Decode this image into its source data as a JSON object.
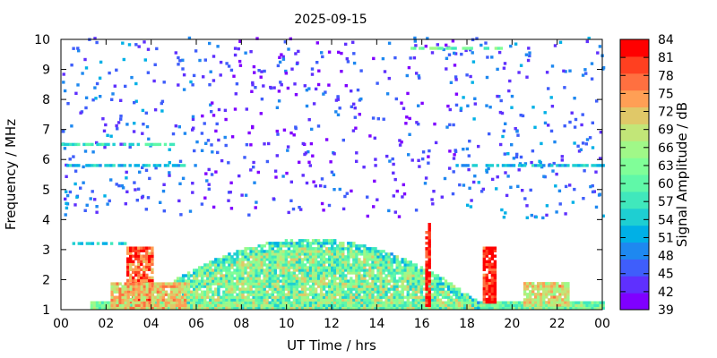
{
  "chart_data": {
    "type": "heatmap",
    "title": "2025-09-15",
    "xlabel": "UT Time / hrs",
    "ylabel": "Frequency / MHz",
    "colorbar_label": "Signal Amplitude / dB",
    "xlim": [
      0,
      24
    ],
    "ylim": [
      1,
      10
    ],
    "x_ticks": [
      "00",
      "02",
      "04",
      "06",
      "08",
      "10",
      "12",
      "14",
      "16",
      "18",
      "20",
      "22",
      "00"
    ],
    "y_ticks": [
      "1",
      "2",
      "3",
      "4",
      "5",
      "6",
      "7",
      "8",
      "9",
      "10"
    ],
    "colorbar_ticks": [
      "39",
      "42",
      "45",
      "48",
      "51",
      "54",
      "57",
      "60",
      "63",
      "66",
      "69",
      "72",
      "75",
      "78",
      "81",
      "84"
    ],
    "colorbar_range": [
      39,
      84
    ],
    "colormap": [
      "#7f00ff",
      "#5f30fe",
      "#3f5efb",
      "#1e88f0",
      "#00b0e6",
      "#1ecfd2",
      "#40e8bc",
      "#60f8a8",
      "#80fe98",
      "#a0f888",
      "#c2e678",
      "#e0c868",
      "#ff9f55",
      "#ff7040",
      "#ff4020",
      "#ff0000"
    ],
    "features": [
      {
        "type": "band",
        "t_start": 1.3,
        "t_end": 24,
        "f_start": 1.0,
        "f_end": 1.25,
        "amplitude": 62
      },
      {
        "type": "dome",
        "t_start": 5.0,
        "t_end": 18.8,
        "f_start": 1.0,
        "f_peak": 3.3,
        "t_peak": 11.0,
        "amplitude": 63
      },
      {
        "type": "burst",
        "t_start": 2.9,
        "t_end": 4.0,
        "f_start": 1.2,
        "f_end": 3.0,
        "amplitude": 78
      },
      {
        "type": "burst",
        "t_start": 2.2,
        "t_end": 5.5,
        "f_start": 1.0,
        "f_end": 1.9,
        "amplitude": 72
      },
      {
        "type": "burst",
        "t_start": 16.15,
        "t_end": 16.35,
        "f_start": 1.0,
        "f_end": 3.8,
        "amplitude": 82
      },
      {
        "type": "burst",
        "t_start": 18.7,
        "t_end": 19.2,
        "f_start": 1.2,
        "f_end": 3.0,
        "amplitude": 81
      },
      {
        "type": "burst",
        "t_start": 20.5,
        "t_end": 22.5,
        "f_start": 1.1,
        "f_end": 1.9,
        "amplitude": 70
      },
      {
        "type": "scatter",
        "t_start": 0.0,
        "t_end": 6.0,
        "f_start": 4.0,
        "f_end": 10.0,
        "amplitude": 47
      },
      {
        "type": "scatter",
        "t_start": 17.5,
        "t_end": 24.0,
        "f_start": 4.0,
        "f_end": 10.0,
        "amplitude": 47
      },
      {
        "type": "scatter",
        "t_start": 6.0,
        "t_end": 17.5,
        "f_start": 4.0,
        "f_end": 10.0,
        "amplitude": 44
      },
      {
        "type": "line",
        "t_start": 0.0,
        "t_end": 5.0,
        "f": 6.45,
        "amplitude": 57
      },
      {
        "type": "line",
        "t_start": 0.0,
        "t_end": 5.5,
        "f": 5.75,
        "amplitude": 53
      },
      {
        "type": "line",
        "t_start": 17.5,
        "t_end": 24.0,
        "f": 5.75,
        "amplitude": 53
      },
      {
        "type": "line",
        "t_start": 15.5,
        "t_end": 19.5,
        "f": 9.65,
        "amplitude": 62
      },
      {
        "type": "line",
        "t_start": 0.5,
        "t_end": 3.0,
        "f": 3.15,
        "amplitude": 53
      }
    ]
  }
}
